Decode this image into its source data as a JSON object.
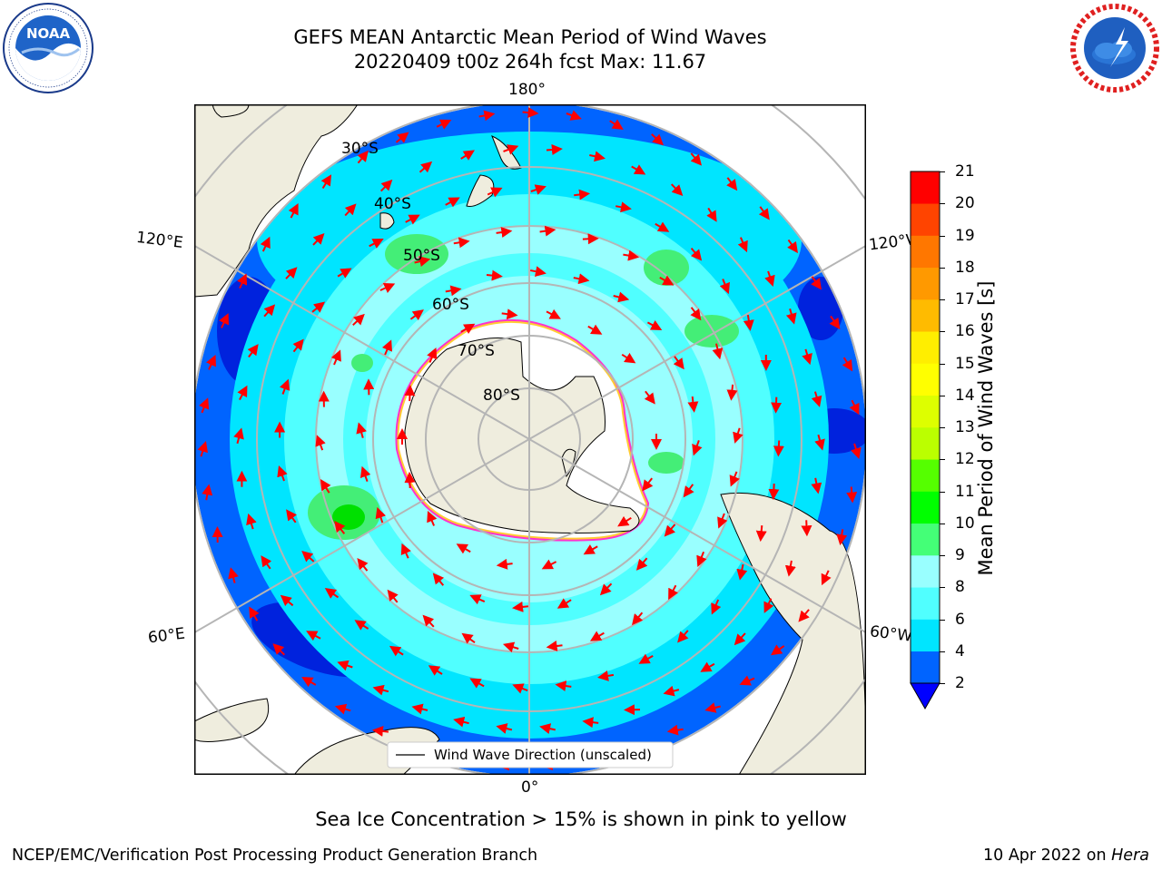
{
  "header": {
    "title_line1": "GEFS MEAN Antarctic Mean Period of Wind Waves",
    "title_line2": "20220409 t00z 264h fcst   Max: 11.67"
  },
  "logos": {
    "left": {
      "text": "NOAA",
      "ring_top": "NATIONAL OCEANIC AND ATMOSPHERIC ADMINISTRATION",
      "ring_bottom": "U.S. DEPARTMENT OF COMMERCE"
    },
    "right": {
      "ring": "NATIONAL WEATHER SERVICE"
    }
  },
  "map": {
    "projection": "south-polar-stereographic",
    "longitude_labels": {
      "top": "180°",
      "bottom": "0°",
      "upper_left": "120°E",
      "upper_right": "120°W",
      "lower_left": "60°E",
      "lower_right": "60°W"
    },
    "latitude_labels": [
      "30°S",
      "40°S",
      "50°S",
      "60°S",
      "70°S",
      "80°S"
    ],
    "legend": {
      "label": "Wind Wave Direction (unscaled)"
    },
    "colors": {
      "ocean_low": "#0064ff",
      "ocean_mid": "#00e5ff",
      "ocean_light": "#99ffff",
      "ocean_green": "#44ee77",
      "land": "#efedde",
      "ice_edge": "#ff33cc",
      "arrow": "#ff0000",
      "grid": "#b5b5b5"
    }
  },
  "colorbar": {
    "label": "Mean Period of Wind Waves [s]",
    "ticks": [
      "2",
      "4",
      "6",
      "8",
      "9",
      "10",
      "11",
      "12",
      "13",
      "14",
      "15",
      "16",
      "17",
      "18",
      "19",
      "20",
      "21"
    ],
    "colors": [
      "#0064ff",
      "#00e5ff",
      "#50ffff",
      "#99ffff",
      "#44ff77",
      "#00ff00",
      "#55ff00",
      "#bbff00",
      "#ddff00",
      "#ffff00",
      "#ffee00",
      "#ffbb00",
      "#ff9900",
      "#ff7700",
      "#ff4400",
      "#ff0000"
    ],
    "under_color": "#0000ff"
  },
  "note": "Sea Ice Concentration > 15% is shown in pink to yellow",
  "footer": {
    "left": "NCEP/EMC/Verification Post Processing Product Generation Branch",
    "right_prefix": "10 Apr 2022 on ",
    "right_host": "Hera"
  }
}
